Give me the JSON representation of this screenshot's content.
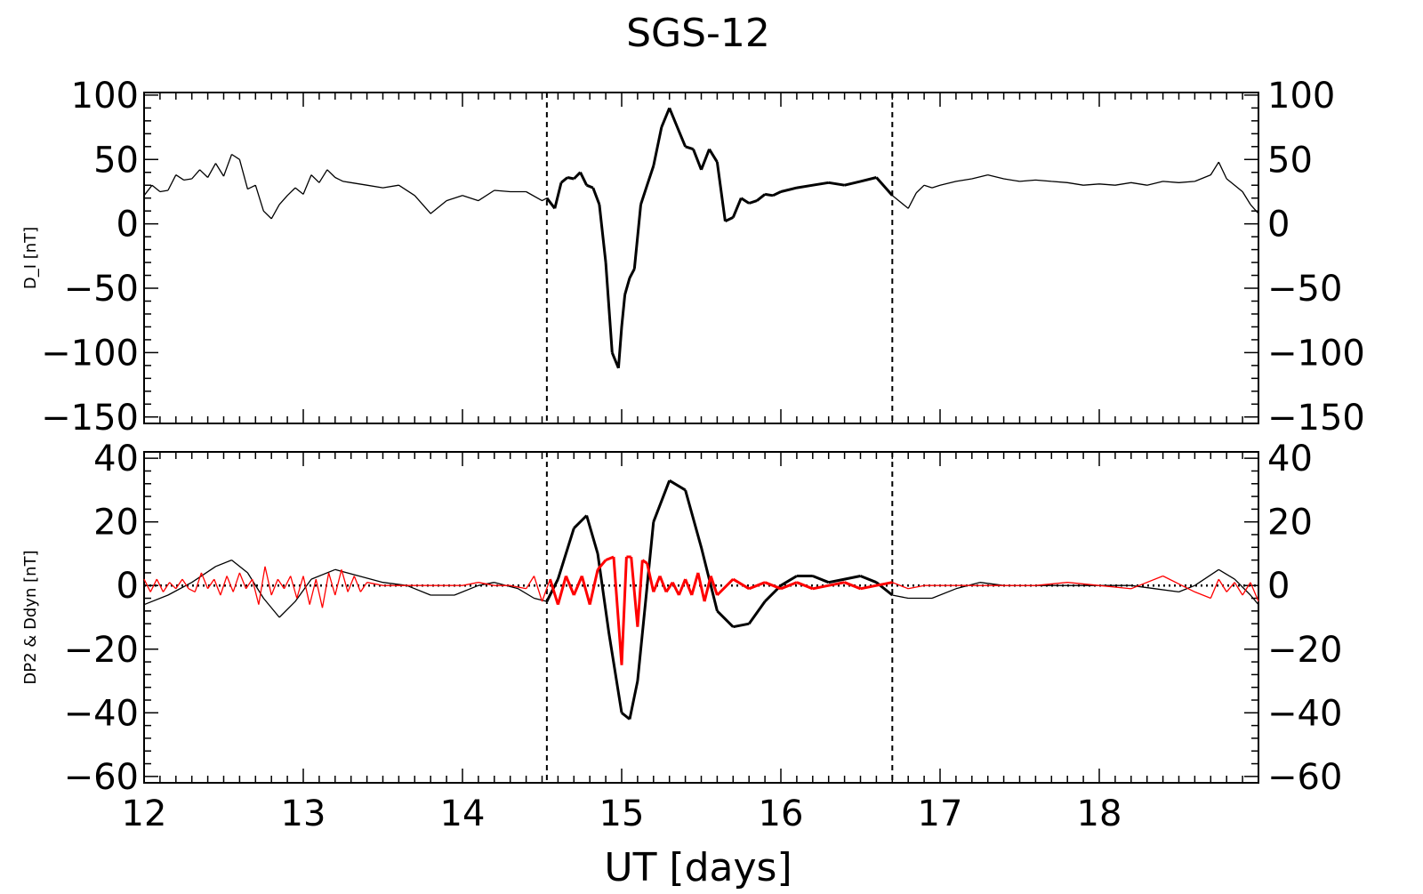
{
  "title": "SGS-12",
  "xlabel": "UT [days]",
  "colors": {
    "axis": "#000000",
    "black_series": "#000000",
    "red_series": "#ff0000"
  },
  "chart_data": [
    {
      "type": "line",
      "panel": "top",
      "ylabel": "D_I [nT]",
      "xlim": [
        12,
        19
      ],
      "ylim": [
        -155,
        102
      ],
      "yticks": [
        100,
        50,
        0,
        -50,
        -100,
        -150
      ],
      "ytick_labels": [
        "100",
        "50",
        "0",
        "−50",
        "−100",
        "−150"
      ],
      "xticks": [
        12,
        13,
        14,
        15,
        16,
        17,
        18
      ],
      "vlines_dashed": [
        14.53,
        16.7
      ],
      "series": [
        {
          "color": "#000000",
          "x": [
            12.0,
            12.05,
            12.1,
            12.15,
            12.2,
            12.25,
            12.3,
            12.35,
            12.4,
            12.45,
            12.5,
            12.55,
            12.6,
            12.65,
            12.7,
            12.75,
            12.8,
            12.85,
            12.9,
            12.95,
            13.0,
            13.05,
            13.1,
            13.15,
            13.2,
            13.25,
            13.3,
            13.4,
            13.5,
            13.6,
            13.7,
            13.8,
            13.9,
            14.0,
            14.1,
            14.2,
            14.3,
            14.4,
            14.5,
            14.53,
            14.58,
            14.62,
            14.66,
            14.7,
            14.74,
            14.78,
            14.82,
            14.86,
            14.9,
            14.94,
            14.98,
            15.0,
            15.02,
            15.05,
            15.08,
            15.12,
            15.16,
            15.2,
            15.25,
            15.3,
            15.35,
            15.4,
            15.45,
            15.5,
            15.55,
            15.6,
            15.65,
            15.7,
            15.75,
            15.8,
            15.85,
            15.9,
            15.95,
            16.0,
            16.1,
            16.2,
            16.3,
            16.4,
            16.5,
            16.6,
            16.7,
            16.8,
            16.85,
            16.9,
            16.95,
            17.0,
            17.1,
            17.2,
            17.3,
            17.4,
            17.5,
            17.6,
            17.7,
            17.8,
            17.9,
            18.0,
            18.1,
            18.2,
            18.3,
            18.4,
            18.5,
            18.6,
            18.7,
            18.75,
            18.8,
            18.85,
            18.9,
            18.95,
            19.0
          ],
          "y": [
            22,
            30,
            25,
            26,
            38,
            34,
            35,
            42,
            36,
            47,
            37,
            54,
            50,
            27,
            30,
            10,
            4,
            15,
            22,
            28,
            23,
            38,
            32,
            42,
            36,
            33,
            32,
            30,
            28,
            30,
            22,
            8,
            18,
            22,
            18,
            26,
            25,
            25,
            18,
            20,
            12,
            32,
            36,
            35,
            40,
            30,
            28,
            15,
            -30,
            -100,
            -112,
            -80,
            -55,
            -42,
            -35,
            15,
            30,
            45,
            75,
            90,
            75,
            60,
            58,
            42,
            58,
            48,
            2,
            5,
            20,
            16,
            18,
            23,
            22,
            25,
            28,
            30,
            32,
            30,
            33,
            36,
            22,
            12,
            24,
            30,
            28,
            30,
            33,
            35,
            38,
            35,
            33,
            34,
            33,
            32,
            30,
            31,
            30,
            32,
            30,
            33,
            32,
            33,
            38,
            48,
            35,
            30,
            25,
            15,
            8
          ]
        }
      ]
    },
    {
      "type": "line",
      "panel": "bottom",
      "ylabel": "DP2 & Ddyn [nT]",
      "xlim": [
        12,
        19
      ],
      "ylim": [
        -62,
        42
      ],
      "yticks": [
        40,
        20,
        0,
        -20,
        -40,
        -60
      ],
      "ytick_labels": [
        "40",
        "20",
        "0",
        "−20",
        "−40",
        "−60"
      ],
      "xticks": [
        12,
        13,
        14,
        15,
        16,
        17,
        18
      ],
      "xtick_labels": [
        "12",
        "13",
        "14",
        "15",
        "16",
        "17",
        "18"
      ],
      "hline_dotted": 0,
      "vlines_dashed": [
        14.53,
        16.7
      ],
      "series": [
        {
          "color": "#000000",
          "x": [
            12.0,
            12.15,
            12.3,
            12.45,
            12.55,
            12.65,
            12.75,
            12.85,
            12.95,
            13.05,
            13.2,
            13.35,
            13.5,
            13.65,
            13.8,
            13.95,
            14.1,
            14.2,
            14.35,
            14.45,
            14.53,
            14.6,
            14.7,
            14.78,
            14.85,
            14.92,
            15.0,
            15.05,
            15.1,
            15.15,
            15.2,
            15.3,
            15.4,
            15.5,
            15.6,
            15.7,
            15.8,
            15.9,
            16.0,
            16.1,
            16.2,
            16.3,
            16.4,
            16.5,
            16.6,
            16.7,
            16.8,
            16.95,
            17.1,
            17.25,
            17.4,
            17.6,
            17.8,
            18.0,
            18.2,
            18.35,
            18.5,
            18.6,
            18.75,
            18.85,
            18.95,
            19.0
          ],
          "y": [
            -6,
            -3,
            1,
            6,
            8,
            4,
            -4,
            -10,
            -5,
            2,
            5,
            3,
            1,
            0,
            -3,
            -3,
            0,
            1,
            -1,
            -4,
            -5,
            2,
            18,
            22,
            10,
            -15,
            -40,
            -42,
            -30,
            -5,
            20,
            33,
            30,
            12,
            -8,
            -13,
            -12,
            -5,
            0,
            3,
            3,
            1,
            2,
            3,
            1,
            -3,
            -4,
            -4,
            -1,
            1,
            0,
            0,
            0,
            0,
            0,
            -1,
            -2,
            0,
            5,
            2,
            -3,
            -6
          ]
        },
        {
          "color": "#ff0000",
          "x": [
            12.0,
            12.04,
            12.08,
            12.12,
            12.16,
            12.2,
            12.24,
            12.28,
            12.32,
            12.36,
            12.4,
            12.44,
            12.48,
            12.52,
            12.56,
            12.6,
            12.64,
            12.68,
            12.72,
            12.76,
            12.8,
            12.84,
            12.88,
            12.92,
            12.96,
            13.0,
            13.04,
            13.08,
            13.12,
            13.16,
            13.2,
            13.24,
            13.28,
            13.32,
            13.36,
            13.4,
            13.5,
            13.6,
            13.7,
            13.8,
            13.9,
            14.0,
            14.1,
            14.2,
            14.3,
            14.4,
            14.45,
            14.5,
            14.55,
            14.6,
            14.65,
            14.7,
            14.75,
            14.8,
            14.85,
            14.9,
            14.95,
            15.0,
            15.03,
            15.06,
            15.1,
            15.13,
            15.16,
            15.2,
            15.24,
            15.28,
            15.32,
            15.36,
            15.4,
            15.44,
            15.48,
            15.52,
            15.56,
            15.6,
            15.7,
            15.8,
            15.9,
            16.0,
            16.1,
            16.2,
            16.3,
            16.4,
            16.5,
            16.6,
            16.7,
            16.8,
            16.9,
            17.0,
            17.2,
            17.4,
            17.6,
            17.8,
            18.0,
            18.2,
            18.4,
            18.6,
            18.7,
            18.75,
            18.8,
            18.85,
            18.9,
            18.95,
            19.0
          ],
          "y": [
            2,
            -2,
            2,
            -2,
            1,
            -1,
            2,
            -1,
            -2,
            4,
            -1,
            2,
            -3,
            3,
            -2,
            4,
            -1,
            2,
            -6,
            6,
            -3,
            2,
            -1,
            3,
            -4,
            3,
            -6,
            2,
            -7,
            4,
            -3,
            5,
            -2,
            3,
            -2,
            1,
            0,
            0,
            0,
            0,
            0,
            0,
            1,
            0,
            0,
            -1,
            3,
            -5,
            2,
            -6,
            3,
            -3,
            3,
            -6,
            5,
            8,
            9,
            -25,
            9,
            9,
            -13,
            8,
            7,
            -2,
            3,
            -2,
            1,
            -3,
            2,
            -3,
            4,
            -5,
            3,
            -3,
            2,
            -1,
            1,
            -1,
            1,
            -1,
            0,
            1,
            -1,
            0,
            1,
            -1,
            0,
            0,
            0,
            0,
            0,
            1,
            0,
            -1,
            3,
            -2,
            -4,
            2,
            -2,
            1,
            -3,
            1,
            -5
          ]
        }
      ]
    }
  ]
}
